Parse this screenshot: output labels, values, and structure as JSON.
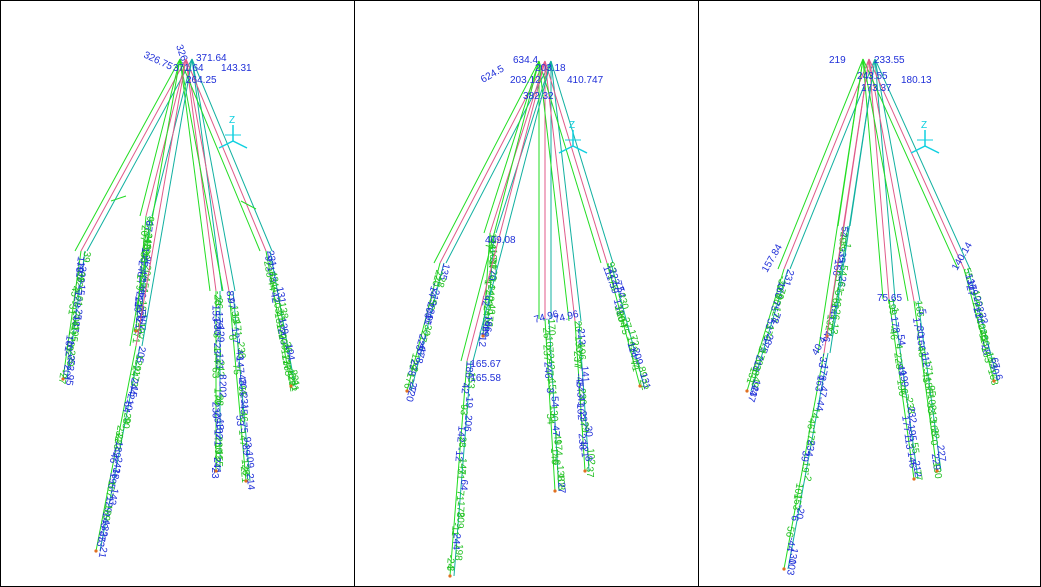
{
  "colors": {
    "pink": "#e05a8a",
    "green": "#22dd22",
    "teal": "#10b0a0",
    "blue_text": "#1f2fd8",
    "green_text": "#20c020",
    "axis": "#10d0e0",
    "orange": "#e07020"
  },
  "panels": [
    {
      "top_labels": [
        "326.75",
        "371.64",
        "264.25",
        "143.31",
        "326.",
        "371.64"
      ],
      "axis_label": "Z"
    },
    {
      "top_labels": [
        "624.5",
        "634.4",
        "203.12",
        "203.18",
        "410.747",
        "382.32"
      ],
      "cluster_labels": [
        "409.08",
        "74.96",
        "74.96",
        "111.59",
        "-165.67",
        "-165.58"
      ],
      "axis_label": "Z"
    },
    {
      "top_labels": [
        "219",
        "243.55",
        "233.55",
        "173.37",
        "180.13"
      ],
      "cluster_labels": [
        "157.84",
        "40.4",
        "75.65",
        "140.14"
      ],
      "axis_label": "Z"
    }
  ]
}
